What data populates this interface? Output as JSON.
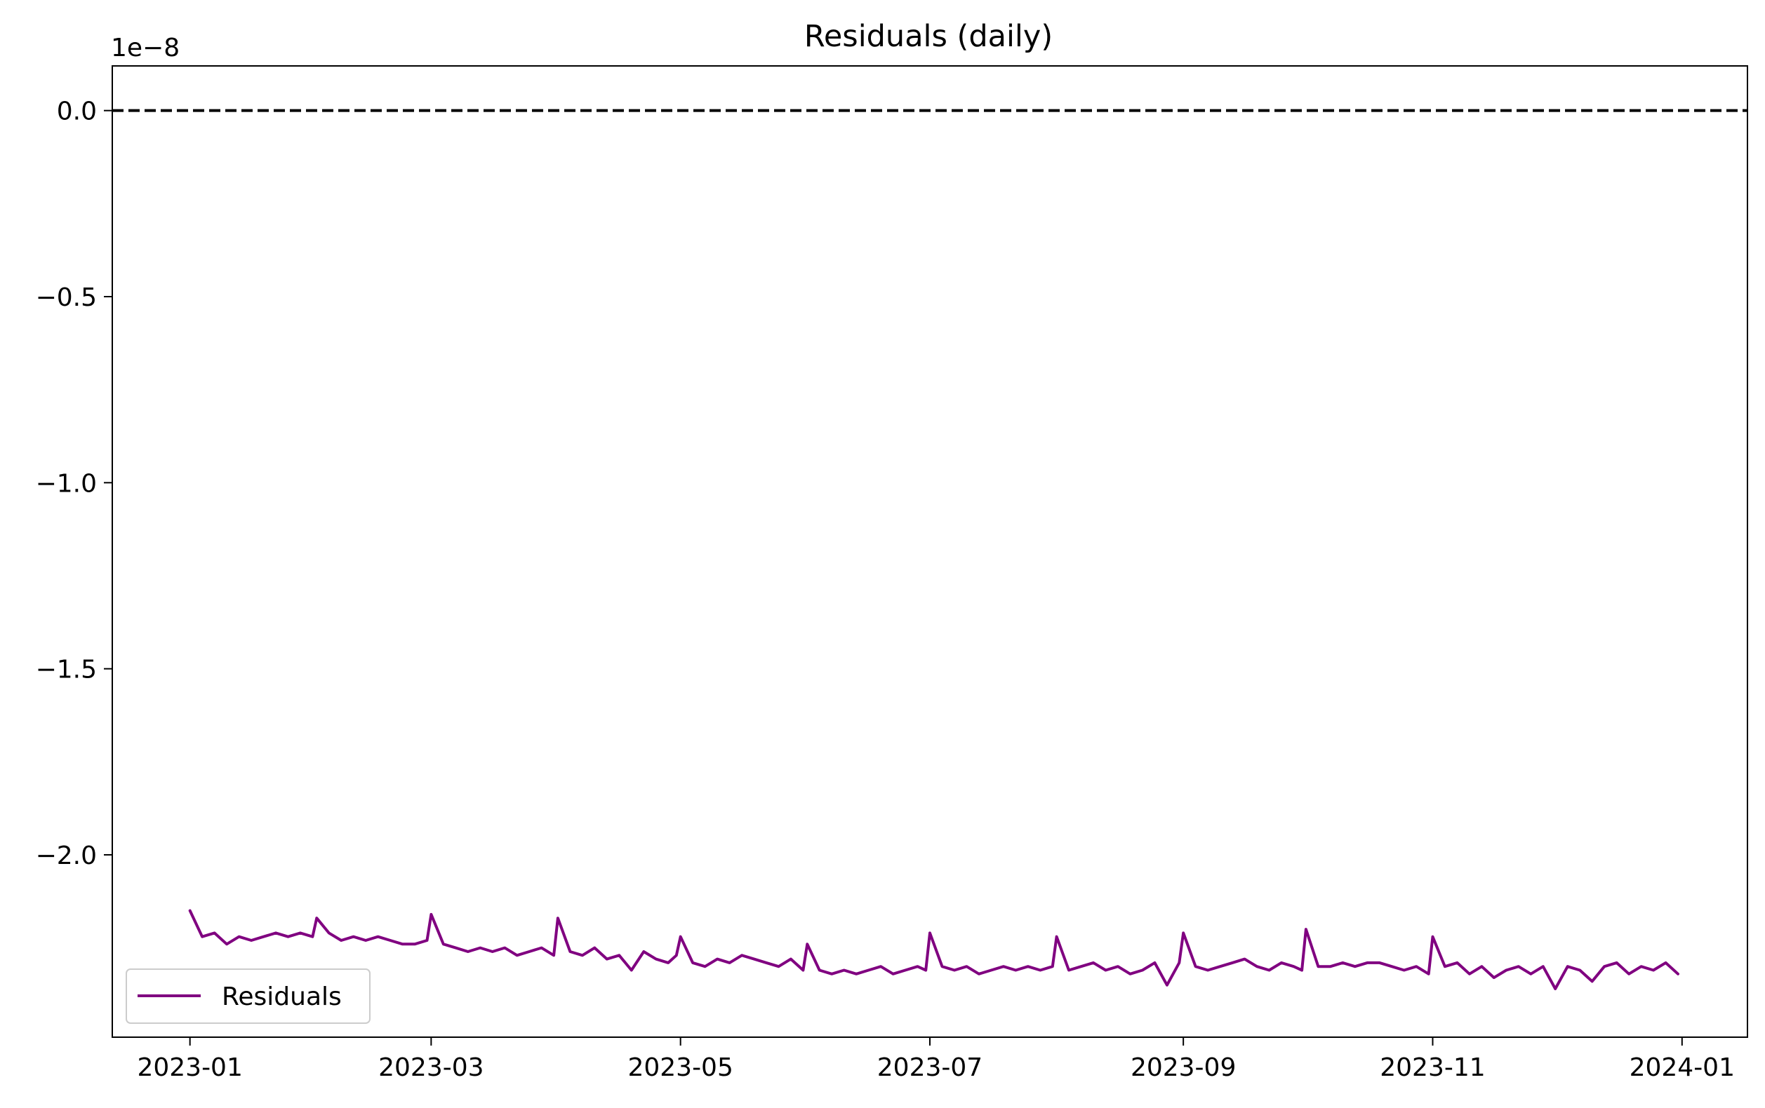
{
  "chart_data": {
    "type": "line",
    "title": "Residuals (daily)",
    "xlabel": "",
    "ylabel": "",
    "y_offset_label": "1e−8",
    "y_scale": 1e-08,
    "xlim": [
      "2022-12-13",
      "2024-01-17"
    ],
    "ylim": [
      -2.49e-08,
      1.2e-09
    ],
    "x_ticks": [
      {
        "date": "2023-01-01",
        "label": "2023-01"
      },
      {
        "date": "2023-03-01",
        "label": "2023-03"
      },
      {
        "date": "2023-05-01",
        "label": "2023-05"
      },
      {
        "date": "2023-07-01",
        "label": "2023-07"
      },
      {
        "date": "2023-09-01",
        "label": "2023-09"
      },
      {
        "date": "2023-11-01",
        "label": "2023-11"
      },
      {
        "date": "2024-01-01",
        "label": "2024-01"
      }
    ],
    "y_ticks": [
      {
        "value": 0.0,
        "label": "0.0"
      },
      {
        "value": -5e-09,
        "label": "−0.5"
      },
      {
        "value": -1e-08,
        "label": "−1.0"
      },
      {
        "value": -1.5e-08,
        "label": "−1.5"
      },
      {
        "value": -2e-08,
        "label": "−2.0"
      }
    ],
    "grid": false,
    "legend": {
      "placement": "lower-left",
      "entries": [
        "Residuals"
      ]
    },
    "reference_line": {
      "y": 0,
      "style": "dashed",
      "color": "#000000"
    },
    "colors": {
      "series": "#800080",
      "reference": "#000000"
    },
    "series": [
      {
        "name": "Residuals",
        "color": "#800080",
        "x": [
          "2023-01-01",
          "2023-01-04",
          "2023-01-07",
          "2023-01-10",
          "2023-01-13",
          "2023-01-16",
          "2023-01-19",
          "2023-01-22",
          "2023-01-25",
          "2023-01-28",
          "2023-01-31",
          "2023-02-01",
          "2023-02-04",
          "2023-02-07",
          "2023-02-10",
          "2023-02-13",
          "2023-02-16",
          "2023-02-19",
          "2023-02-22",
          "2023-02-25",
          "2023-02-28",
          "2023-03-01",
          "2023-03-04",
          "2023-03-07",
          "2023-03-10",
          "2023-03-13",
          "2023-03-16",
          "2023-03-19",
          "2023-03-22",
          "2023-03-25",
          "2023-03-28",
          "2023-03-31",
          "2023-04-01",
          "2023-04-04",
          "2023-04-07",
          "2023-04-10",
          "2023-04-13",
          "2023-04-16",
          "2023-04-19",
          "2023-04-22",
          "2023-04-25",
          "2023-04-28",
          "2023-04-30",
          "2023-05-01",
          "2023-05-04",
          "2023-05-07",
          "2023-05-10",
          "2023-05-13",
          "2023-05-16",
          "2023-05-19",
          "2023-05-22",
          "2023-05-25",
          "2023-05-28",
          "2023-05-31",
          "2023-06-01",
          "2023-06-04",
          "2023-06-07",
          "2023-06-10",
          "2023-06-13",
          "2023-06-16",
          "2023-06-19",
          "2023-06-22",
          "2023-06-25",
          "2023-06-28",
          "2023-06-30",
          "2023-07-01",
          "2023-07-04",
          "2023-07-07",
          "2023-07-10",
          "2023-07-13",
          "2023-07-16",
          "2023-07-19",
          "2023-07-22",
          "2023-07-25",
          "2023-07-28",
          "2023-07-31",
          "2023-08-01",
          "2023-08-04",
          "2023-08-07",
          "2023-08-10",
          "2023-08-13",
          "2023-08-16",
          "2023-08-19",
          "2023-08-22",
          "2023-08-25",
          "2023-08-28",
          "2023-08-31",
          "2023-09-01",
          "2023-09-04",
          "2023-09-07",
          "2023-09-10",
          "2023-09-13",
          "2023-09-16",
          "2023-09-19",
          "2023-09-22",
          "2023-09-25",
          "2023-09-28",
          "2023-09-30",
          "2023-10-01",
          "2023-10-04",
          "2023-10-07",
          "2023-10-10",
          "2023-10-13",
          "2023-10-16",
          "2023-10-19",
          "2023-10-22",
          "2023-10-25",
          "2023-10-28",
          "2023-10-31",
          "2023-11-01",
          "2023-11-04",
          "2023-11-07",
          "2023-11-10",
          "2023-11-13",
          "2023-11-16",
          "2023-11-19",
          "2023-11-22",
          "2023-11-25",
          "2023-11-28",
          "2023-12-01",
          "2023-12-04",
          "2023-12-07",
          "2023-12-10",
          "2023-12-13",
          "2023-12-16",
          "2023-12-19",
          "2023-12-22",
          "2023-12-25",
          "2023-12-28",
          "2023-12-31"
        ],
        "values": [
          -2.15e-08,
          -2.22e-08,
          -2.21e-08,
          -2.24e-08,
          -2.22e-08,
          -2.23e-08,
          -2.22e-08,
          -2.21e-08,
          -2.22e-08,
          -2.21e-08,
          -2.22e-08,
          -2.17e-08,
          -2.21e-08,
          -2.23e-08,
          -2.22e-08,
          -2.23e-08,
          -2.22e-08,
          -2.23e-08,
          -2.24e-08,
          -2.24e-08,
          -2.23e-08,
          -2.16e-08,
          -2.24e-08,
          -2.25e-08,
          -2.26e-08,
          -2.25e-08,
          -2.26e-08,
          -2.25e-08,
          -2.27e-08,
          -2.26e-08,
          -2.25e-08,
          -2.27e-08,
          -2.17e-08,
          -2.26e-08,
          -2.27e-08,
          -2.25e-08,
          -2.28e-08,
          -2.27e-08,
          -2.31e-08,
          -2.26e-08,
          -2.28e-08,
          -2.29e-08,
          -2.27e-08,
          -2.22e-08,
          -2.29e-08,
          -2.3e-08,
          -2.28e-08,
          -2.29e-08,
          -2.27e-08,
          -2.28e-08,
          -2.29e-08,
          -2.3e-08,
          -2.28e-08,
          -2.31e-08,
          -2.24e-08,
          -2.31e-08,
          -2.32e-08,
          -2.31e-08,
          -2.32e-08,
          -2.31e-08,
          -2.3e-08,
          -2.32e-08,
          -2.31e-08,
          -2.3e-08,
          -2.31e-08,
          -2.21e-08,
          -2.3e-08,
          -2.31e-08,
          -2.3e-08,
          -2.32e-08,
          -2.31e-08,
          -2.3e-08,
          -2.31e-08,
          -2.3e-08,
          -2.31e-08,
          -2.3e-08,
          -2.22e-08,
          -2.31e-08,
          -2.3e-08,
          -2.29e-08,
          -2.31e-08,
          -2.3e-08,
          -2.32e-08,
          -2.31e-08,
          -2.29e-08,
          -2.35e-08,
          -2.29e-08,
          -2.21e-08,
          -2.3e-08,
          -2.31e-08,
          -2.3e-08,
          -2.29e-08,
          -2.28e-08,
          -2.3e-08,
          -2.31e-08,
          -2.29e-08,
          -2.3e-08,
          -2.31e-08,
          -2.2e-08,
          -2.3e-08,
          -2.3e-08,
          -2.29e-08,
          -2.3e-08,
          -2.29e-08,
          -2.29e-08,
          -2.3e-08,
          -2.31e-08,
          -2.3e-08,
          -2.32e-08,
          -2.22e-08,
          -2.3e-08,
          -2.29e-08,
          -2.32e-08,
          -2.3e-08,
          -2.33e-08,
          -2.31e-08,
          -2.3e-08,
          -2.32e-08,
          -2.3e-08,
          -2.36e-08,
          -2.3e-08,
          -2.31e-08,
          -2.34e-08,
          -2.3e-08,
          -2.29e-08,
          -2.32e-08,
          -2.3e-08,
          -2.31e-08,
          -2.29e-08,
          -2.32e-08
        ]
      }
    ]
  }
}
